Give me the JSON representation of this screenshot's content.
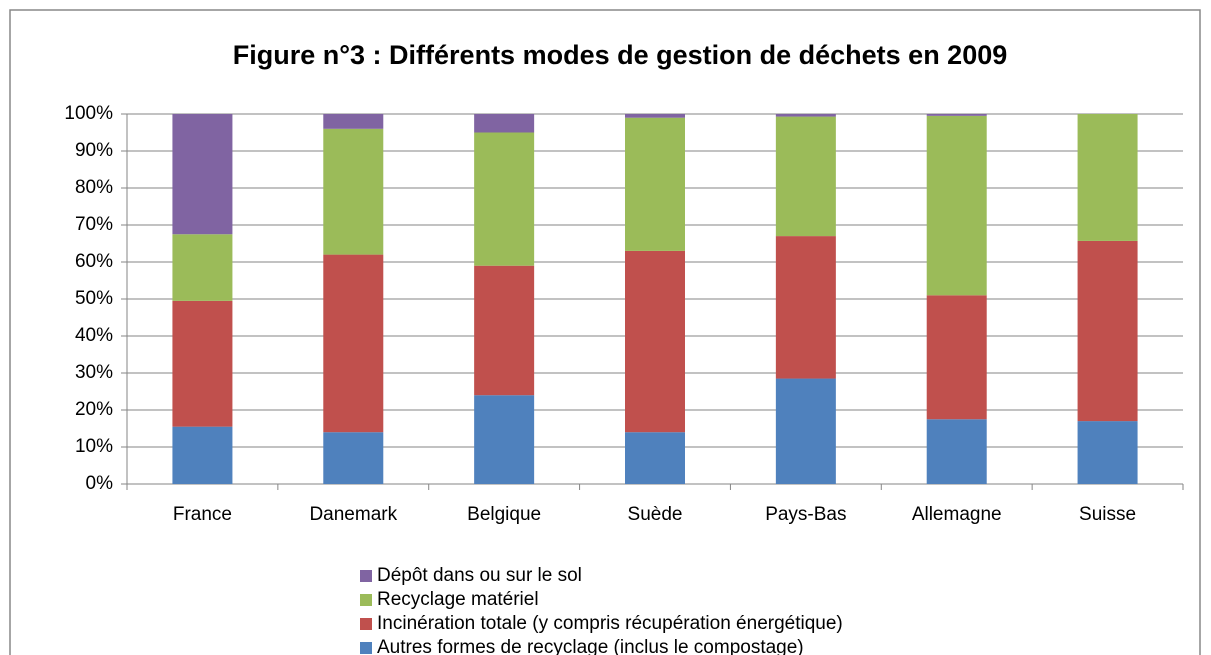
{
  "chart_data": {
    "type": "stacked_bar",
    "title": "Figure n°3 : Différents modes de gestion de déchets en 2009",
    "categories": [
      "France",
      "Danemark",
      "Belgique",
      "Suède",
      "Pays-Bas",
      "Allemagne",
      "Suisse"
    ],
    "series": [
      {
        "name": "Autres formes de recyclage (inclus le compostage)",
        "color": "#4f81bd",
        "values": [
          15.5,
          14,
          24,
          14,
          28.5,
          17.5,
          17
        ]
      },
      {
        "name": "Incinération totale (y compris récupération énergétique)",
        "color": "#c0504d",
        "values": [
          34,
          48,
          35,
          49,
          38.5,
          33.5,
          48.7
        ]
      },
      {
        "name": "Recyclage matériel",
        "color": "#9bbb59",
        "values": [
          18,
          34,
          36,
          36,
          32.3,
          48.5,
          34.3
        ]
      },
      {
        "name": "Dépôt dans ou sur le sol",
        "color": "#8064a2",
        "values": [
          32.5,
          4,
          5,
          1,
          0.7,
          0.5,
          0
        ]
      }
    ],
    "ylim": [
      0,
      100
    ],
    "yticks": [
      {
        "value": 0,
        "label": "0%"
      },
      {
        "value": 10,
        "label": "10%"
      },
      {
        "value": 20,
        "label": "20%"
      },
      {
        "value": 30,
        "label": "30%"
      },
      {
        "value": 40,
        "label": "40%"
      },
      {
        "value": 50,
        "label": "50%"
      },
      {
        "value": 60,
        "label": "60%"
      },
      {
        "value": 70,
        "label": "70%"
      },
      {
        "value": 80,
        "label": "80%"
      },
      {
        "value": 90,
        "label": "90%"
      },
      {
        "value": 100,
        "label": "100%"
      }
    ],
    "grid": true,
    "legend": "bottom"
  }
}
